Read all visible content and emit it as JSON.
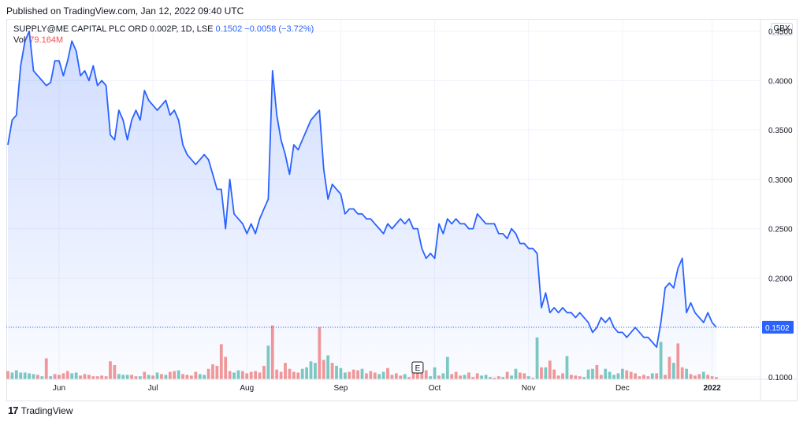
{
  "published": "Published on TradingView.com, Jan 12, 2022 09:40 UTC",
  "legend": {
    "symbol": "SUPPLY@ME CAPITAL PLC ORD 0.002P, 1D, LSE",
    "last": "0.1502",
    "change": "−0.0058 (−3.72%)"
  },
  "volume": {
    "label": "Vol",
    "value": "79.164M"
  },
  "currency": "GBX",
  "footer": {
    "brand": "TradingView"
  },
  "earnings_marker": "E",
  "colors": {
    "line": "#2962ff",
    "vol_up": "#26a69a",
    "vol_down": "#ef5350"
  },
  "chart_data": {
    "type": "area",
    "y_tick_labels": [
      "0.4500",
      "0.4000",
      "0.3500",
      "0.3000",
      "0.2500",
      "0.2000",
      "0.1500",
      "0.1000"
    ],
    "y_ticks": [
      0.45,
      0.4,
      0.35,
      0.3,
      0.25,
      0.2,
      0.15,
      0.1
    ],
    "ylim": [
      0.0975,
      0.4625
    ],
    "last_price": 0.1502,
    "last_price_label": "0.1502",
    "x_ticks": [
      {
        "label": "Jun",
        "index": 12
      },
      {
        "label": "Jul",
        "index": 34
      },
      {
        "label": "Aug",
        "index": 56
      },
      {
        "label": "Sep",
        "index": 78
      },
      {
        "label": "Oct",
        "index": 100
      },
      {
        "label": "Nov",
        "index": 122
      },
      {
        "label": "Dec",
        "index": 144
      },
      {
        "label": "2022",
        "index": 165,
        "bold": true
      }
    ],
    "series": [
      {
        "values": [
          0.335,
          0.36,
          0.365,
          0.415,
          0.44,
          0.45,
          0.41,
          0.405,
          0.4,
          0.395,
          0.398,
          0.42,
          0.42,
          0.405,
          0.42,
          0.44,
          0.43,
          0.405,
          0.41,
          0.4,
          0.415,
          0.395,
          0.4,
          0.395,
          0.345,
          0.34,
          0.37,
          0.36,
          0.34,
          0.36,
          0.37,
          0.36,
          0.39,
          0.38,
          0.375,
          0.37,
          0.375,
          0.38,
          0.365,
          0.37,
          0.36,
          0.335,
          0.325,
          0.32,
          0.315,
          0.32,
          0.325,
          0.32,
          0.305,
          0.29,
          0.29,
          0.25,
          0.3,
          0.265,
          0.26,
          0.255,
          0.245,
          0.255,
          0.245,
          0.26,
          0.27,
          0.28,
          0.41,
          0.365,
          0.34,
          0.325,
          0.305,
          0.335,
          0.33,
          0.34,
          0.35,
          0.36,
          0.365,
          0.37,
          0.31,
          0.28,
          0.295,
          0.29,
          0.285,
          0.265,
          0.27,
          0.27,
          0.265,
          0.265,
          0.26,
          0.26,
          0.255,
          0.25,
          0.245,
          0.255,
          0.25,
          0.255,
          0.26,
          0.255,
          0.26,
          0.25,
          0.25,
          0.23,
          0.22,
          0.225,
          0.22,
          0.255,
          0.245,
          0.26,
          0.255,
          0.26,
          0.255,
          0.255,
          0.25,
          0.25,
          0.265,
          0.26,
          0.255,
          0.255,
          0.255,
          0.245,
          0.245,
          0.24,
          0.25,
          0.245,
          0.235,
          0.235,
          0.23,
          0.23,
          0.225,
          0.17,
          0.185,
          0.165,
          0.17,
          0.165,
          0.17,
          0.165,
          0.165,
          0.16,
          0.165,
          0.16,
          0.155,
          0.145,
          0.15,
          0.16,
          0.155,
          0.16,
          0.15,
          0.145,
          0.145,
          0.14,
          0.145,
          0.15,
          0.145,
          0.14,
          0.14,
          0.135,
          0.13,
          0.155,
          0.19,
          0.195,
          0.19,
          0.21,
          0.22,
          0.165,
          0.175,
          0.165,
          0.16,
          0.155,
          0.165,
          0.155,
          0.15
        ]
      }
    ],
    "volume": [
      [
        11,
        1
      ],
      [
        9,
        0
      ],
      [
        12,
        0
      ],
      [
        9,
        0
      ],
      [
        9,
        0
      ],
      [
        8,
        0
      ],
      [
        7,
        0
      ],
      [
        6,
        1
      ],
      [
        4,
        0
      ],
      [
        28,
        1
      ],
      [
        4,
        0
      ],
      [
        7,
        1
      ],
      [
        6,
        1
      ],
      [
        8,
        1
      ],
      [
        11,
        1
      ],
      [
        8,
        0
      ],
      [
        9,
        0
      ],
      [
        5,
        1
      ],
      [
        7,
        1
      ],
      [
        6,
        1
      ],
      [
        4,
        1
      ],
      [
        4,
        1
      ],
      [
        5,
        1
      ],
      [
        4,
        1
      ],
      [
        24,
        1
      ],
      [
        19,
        1
      ],
      [
        7,
        0
      ],
      [
        6,
        0
      ],
      [
        6,
        0
      ],
      [
        6,
        1
      ],
      [
        4,
        1
      ],
      [
        4,
        0
      ],
      [
        10,
        1
      ],
      [
        6,
        0
      ],
      [
        5,
        1
      ],
      [
        9,
        0
      ],
      [
        7,
        1
      ],
      [
        6,
        0
      ],
      [
        10,
        1
      ],
      [
        11,
        1
      ],
      [
        12,
        0
      ],
      [
        7,
        1
      ],
      [
        6,
        1
      ],
      [
        5,
        1
      ],
      [
        10,
        1
      ],
      [
        7,
        0
      ],
      [
        6,
        0
      ],
      [
        14,
        1
      ],
      [
        20,
        1
      ],
      [
        18,
        1
      ],
      [
        47,
        1
      ],
      [
        30,
        1
      ],
      [
        11,
        1
      ],
      [
        9,
        0
      ],
      [
        12,
        0
      ],
      [
        11,
        1
      ],
      [
        8,
        1
      ],
      [
        10,
        1
      ],
      [
        11,
        1
      ],
      [
        9,
        1
      ],
      [
        18,
        1
      ],
      [
        45,
        0
      ],
      [
        72,
        1
      ],
      [
        13,
        1
      ],
      [
        10,
        1
      ],
      [
        22,
        1
      ],
      [
        14,
        1
      ],
      [
        10,
        1
      ],
      [
        9,
        1
      ],
      [
        14,
        0
      ],
      [
        16,
        0
      ],
      [
        24,
        0
      ],
      [
        22,
        0
      ],
      [
        70,
        1
      ],
      [
        26,
        1
      ],
      [
        32,
        0
      ],
      [
        22,
        1
      ],
      [
        18,
        0
      ],
      [
        15,
        0
      ],
      [
        9,
        0
      ],
      [
        10,
        1
      ],
      [
        13,
        1
      ],
      [
        12,
        1
      ],
      [
        14,
        0
      ],
      [
        8,
        1
      ],
      [
        11,
        1
      ],
      [
        9,
        1
      ],
      [
        7,
        0
      ],
      [
        10,
        0
      ],
      [
        15,
        1
      ],
      [
        6,
        1
      ],
      [
        8,
        1
      ],
      [
        5,
        1
      ],
      [
        7,
        0
      ],
      [
        3,
        1
      ],
      [
        10,
        1
      ],
      [
        18,
        1
      ],
      [
        17,
        1
      ],
      [
        12,
        1
      ],
      [
        4,
        0
      ],
      [
        16,
        0
      ],
      [
        5,
        1
      ],
      [
        8,
        0
      ],
      [
        30,
        0
      ],
      [
        7,
        1
      ],
      [
        10,
        1
      ],
      [
        5,
        1
      ],
      [
        6,
        0
      ],
      [
        9,
        1
      ],
      [
        3,
        1
      ],
      [
        8,
        1
      ],
      [
        5,
        0
      ],
      [
        6,
        0
      ],
      [
        3,
        0
      ],
      [
        2,
        1
      ],
      [
        4,
        1
      ],
      [
        3,
        0
      ],
      [
        10,
        1
      ],
      [
        5,
        0
      ],
      [
        14,
        0
      ],
      [
        9,
        1
      ],
      [
        8,
        1
      ],
      [
        4,
        0
      ],
      [
        2,
        1
      ],
      [
        56,
        0
      ],
      [
        16,
        1
      ],
      [
        16,
        0
      ],
      [
        25,
        1
      ],
      [
        13,
        1
      ],
      [
        5,
        1
      ],
      [
        8,
        1
      ],
      [
        31,
        0
      ],
      [
        6,
        1
      ],
      [
        5,
        1
      ],
      [
        4,
        1
      ],
      [
        3,
        0
      ],
      [
        13,
        0
      ],
      [
        14,
        0
      ],
      [
        19,
        1
      ],
      [
        6,
        1
      ],
      [
        14,
        0
      ],
      [
        10,
        0
      ],
      [
        6,
        0
      ],
      [
        8,
        0
      ],
      [
        14,
        0
      ],
      [
        12,
        1
      ],
      [
        10,
        1
      ],
      [
        8,
        1
      ],
      [
        4,
        1
      ],
      [
        6,
        1
      ],
      [
        4,
        1
      ],
      [
        8,
        0
      ],
      [
        8,
        1
      ],
      [
        50,
        0
      ],
      [
        6,
        1
      ],
      [
        30,
        1
      ],
      [
        22,
        0
      ],
      [
        48,
        1
      ],
      [
        16,
        1
      ],
      [
        14,
        0
      ],
      [
        7,
        1
      ],
      [
        5,
        1
      ],
      [
        7,
        1
      ],
      [
        10,
        0
      ],
      [
        6,
        1
      ],
      [
        4,
        1
      ],
      [
        3,
        1
      ]
    ]
  }
}
